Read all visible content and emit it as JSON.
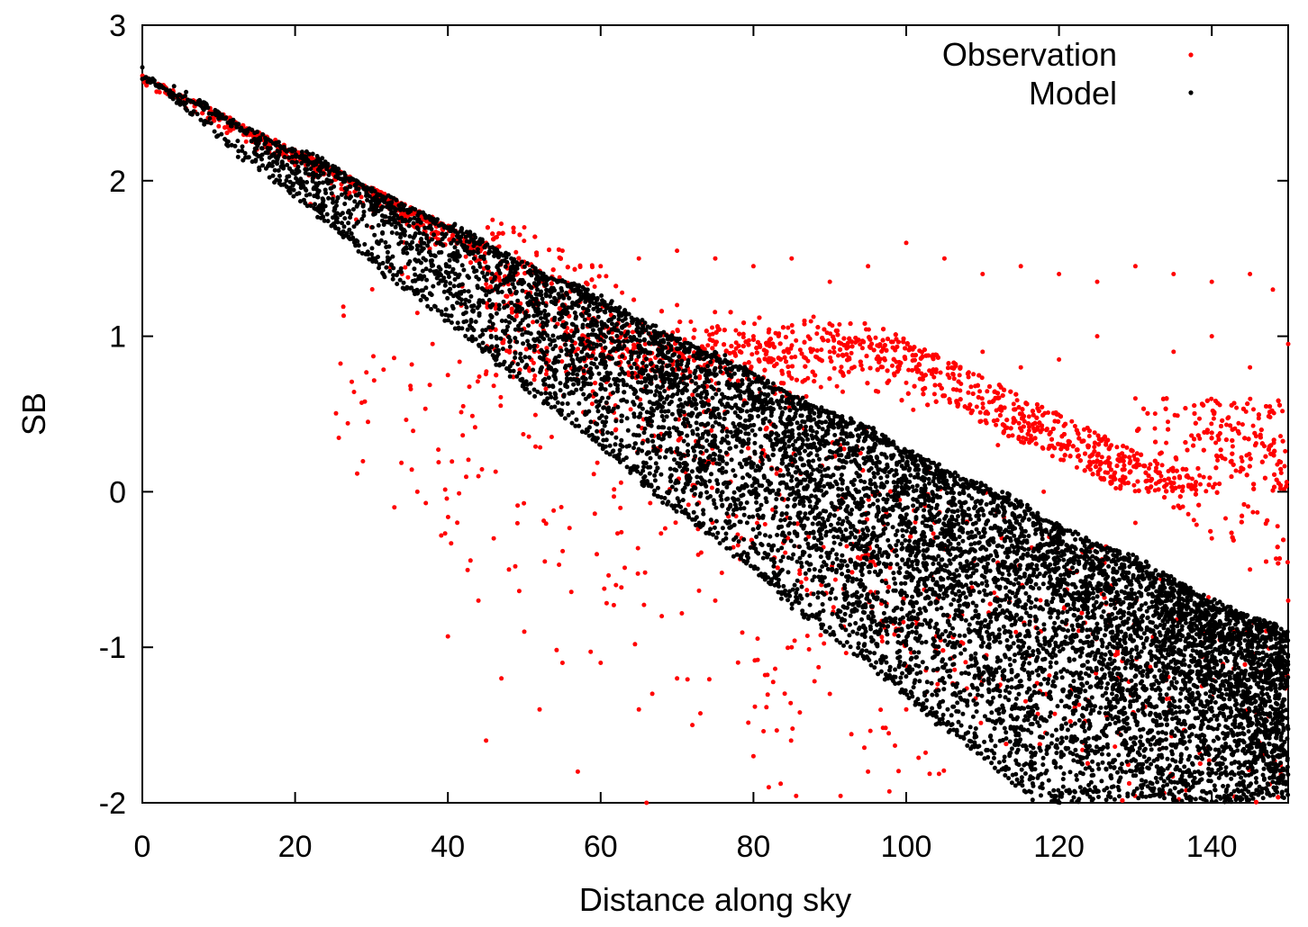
{
  "chart_data": {
    "type": "scatter",
    "title": "",
    "xlabel": "Distance along sky",
    "ylabel": "SB",
    "xlim": [
      0,
      150
    ],
    "ylim": [
      -2,
      3
    ],
    "xticks": [
      0,
      20,
      40,
      60,
      80,
      100,
      120,
      140
    ],
    "yticks": [
      3,
      2,
      1,
      0,
      -1,
      -2
    ],
    "grid": false,
    "legend_position": "top-right",
    "series": [
      {
        "name": "Observation",
        "color": "#ff0000",
        "marker": "dot",
        "points": [
          [
            5,
            2.55
          ],
          [
            10,
            2.35
          ],
          [
            15,
            2.2
          ],
          [
            20,
            2.1
          ],
          [
            22,
            1.85
          ],
          [
            25,
            1.9
          ],
          [
            28,
            1.75
          ],
          [
            30,
            1.7
          ],
          [
            34,
            1.4
          ],
          [
            36,
            1.15
          ],
          [
            38,
            0.95
          ],
          [
            40,
            0.75
          ],
          [
            42,
            0.55
          ],
          [
            44,
            0.1
          ],
          [
            46,
            -0.3
          ],
          [
            48,
            -0.5
          ],
          [
            40,
            -0.93
          ],
          [
            44,
            -0.7
          ],
          [
            45,
            -1.6
          ],
          [
            47,
            -1.2
          ],
          [
            50,
            -0.9
          ],
          [
            52,
            -1.4
          ],
          [
            55,
            -1.1
          ],
          [
            57,
            -1.8
          ],
          [
            60,
            -1.1
          ],
          [
            62,
            -0.6
          ],
          [
            65,
            -1.4
          ],
          [
            66,
            -2.0
          ],
          [
            68,
            -0.8
          ],
          [
            70,
            -1.2
          ],
          [
            72,
            -1.5
          ],
          [
            75,
            -0.7
          ],
          [
            80,
            -1.7
          ],
          [
            82,
            -1.9
          ],
          [
            85,
            -1.0
          ],
          [
            90,
            -1.3
          ],
          [
            95,
            -1.8
          ],
          [
            100,
            -1.4
          ],
          [
            33,
            -0.1
          ],
          [
            36,
            0.0
          ],
          [
            45,
            1.6
          ],
          [
            50,
            1.7
          ],
          [
            55,
            1.55
          ],
          [
            60,
            1.45
          ],
          [
            65,
            1.5
          ],
          [
            70,
            1.55
          ],
          [
            75,
            1.5
          ],
          [
            80,
            1.45
          ],
          [
            85,
            1.5
          ],
          [
            90,
            1.35
          ],
          [
            95,
            1.45
          ],
          [
            100,
            1.6
          ],
          [
            105,
            1.5
          ],
          [
            110,
            1.4
          ],
          [
            115,
            1.45
          ],
          [
            120,
            1.4
          ],
          [
            125,
            1.35
          ],
          [
            130,
            1.45
          ],
          [
            135,
            1.4
          ],
          [
            140,
            1.35
          ],
          [
            145,
            1.4
          ],
          [
            148,
            1.3
          ],
          [
            70,
            1.2
          ],
          [
            80,
            1.0
          ],
          [
            90,
            0.9
          ],
          [
            100,
            0.7
          ],
          [
            110,
            0.9
          ],
          [
            115,
            0.8
          ],
          [
            120,
            0.85
          ],
          [
            125,
            1.0
          ],
          [
            130,
            0.6
          ],
          [
            135,
            0.9
          ],
          [
            140,
            1.0
          ],
          [
            145,
            0.8
          ],
          [
            150,
            0.95
          ],
          [
            112,
            0.3
          ],
          [
            118,
            0.0
          ],
          [
            125,
            0.2
          ],
          [
            130,
            -0.2
          ],
          [
            135,
            -0.1
          ],
          [
            140,
            -0.3
          ],
          [
            145,
            -0.5
          ],
          [
            150,
            -0.7
          ]
        ]
      },
      {
        "name": "Model",
        "color": "#000000",
        "marker": "dot",
        "upper_edge": [
          [
            0,
            2.68
          ],
          [
            150,
            -0.92
          ]
        ],
        "lower_edge": [
          [
            0,
            2.68
          ],
          [
            117,
            -2.0
          ]
        ]
      }
    ]
  }
}
